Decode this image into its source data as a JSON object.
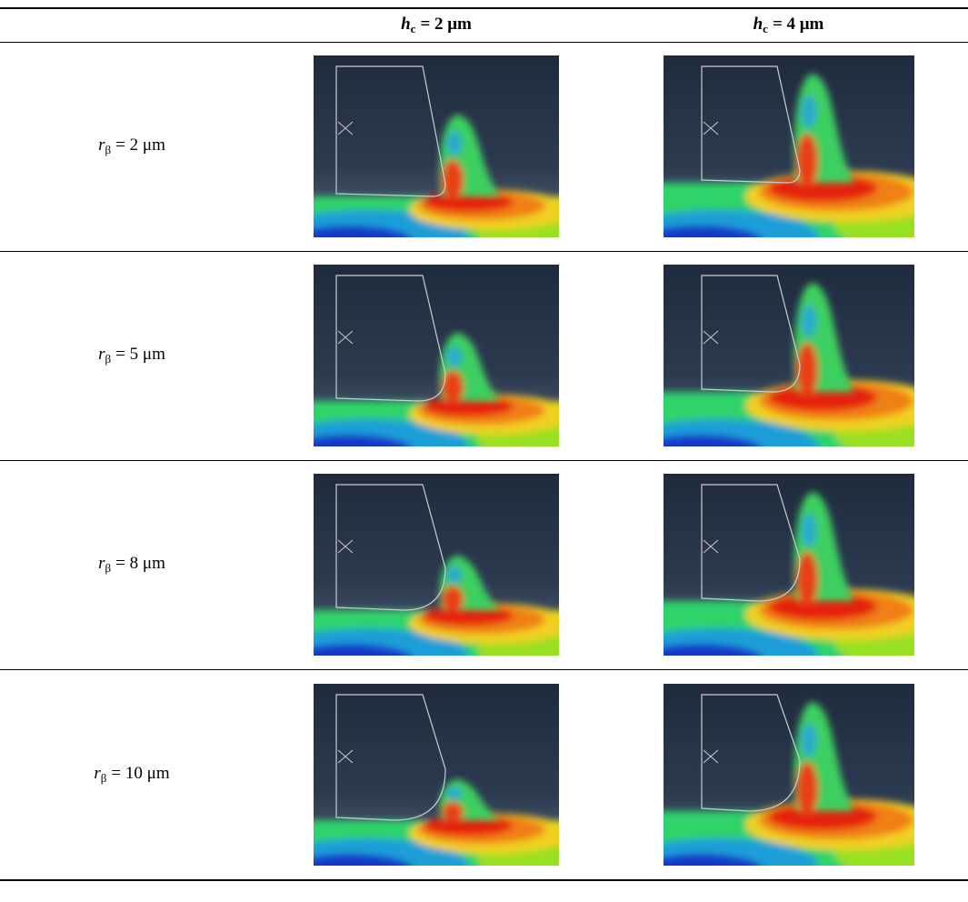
{
  "table": {
    "header": [
      {
        "symbol": "h",
        "subscript": "c",
        "value": "= 2 μm"
      },
      {
        "symbol": "h",
        "subscript": "c",
        "value": "= 4 μm"
      }
    ],
    "rows": [
      {
        "symbol": "r",
        "subscript": "β",
        "value": "= 2 μm"
      },
      {
        "symbol": "r",
        "subscript": "β",
        "value": "= 5 μm"
      },
      {
        "symbol": "r",
        "subscript": "β",
        "value": "= 8 μm"
      },
      {
        "symbol": "r",
        "subscript": "β",
        "value": "= 10 μm"
      }
    ]
  }
}
